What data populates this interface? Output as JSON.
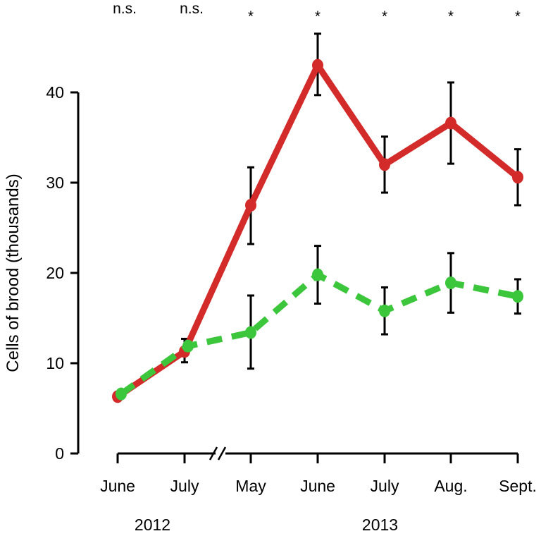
{
  "chart_data": {
    "type": "line",
    "title": "",
    "xlabel": "",
    "ylabel": "Cells of brood (thousands)",
    "ylim": [
      0,
      40
    ],
    "yticks": [
      0,
      10,
      20,
      30,
      40
    ],
    "categories": [
      "June",
      "July",
      "May",
      "June",
      "July",
      "Aug.",
      "Sept."
    ],
    "years": [
      {
        "label": "2012",
        "span": [
          0,
          1
        ]
      },
      {
        "label": "2013",
        "span": [
          2,
          6
        ]
      }
    ],
    "axis_break_after_index": 1,
    "significance": [
      "n.s.",
      "n.s.",
      "*",
      "*",
      "*",
      "*",
      "*"
    ],
    "legend": "none",
    "grid": false,
    "series": [
      {
        "color": "#d32a2a",
        "style": "solid",
        "values": [
          6.3,
          11.3,
          27.5,
          43.0,
          32.0,
          36.6,
          30.6
        ],
        "err_low": [
          6.3,
          10.1,
          23.2,
          39.7,
          28.9,
          32.1,
          27.5
        ],
        "err_high": [
          6.3,
          12.7,
          31.7,
          46.5,
          35.1,
          41.1,
          33.7
        ]
      },
      {
        "color": "#3cc63c",
        "style": "dashed",
        "values": [
          6.6,
          11.9,
          13.4,
          19.8,
          15.8,
          18.9,
          17.4
        ],
        "err_low": [
          6.6,
          11.9,
          9.4,
          16.6,
          13.2,
          15.6,
          15.5
        ],
        "err_high": [
          6.6,
          11.9,
          17.5,
          23.0,
          18.4,
          22.2,
          19.3
        ]
      }
    ]
  }
}
